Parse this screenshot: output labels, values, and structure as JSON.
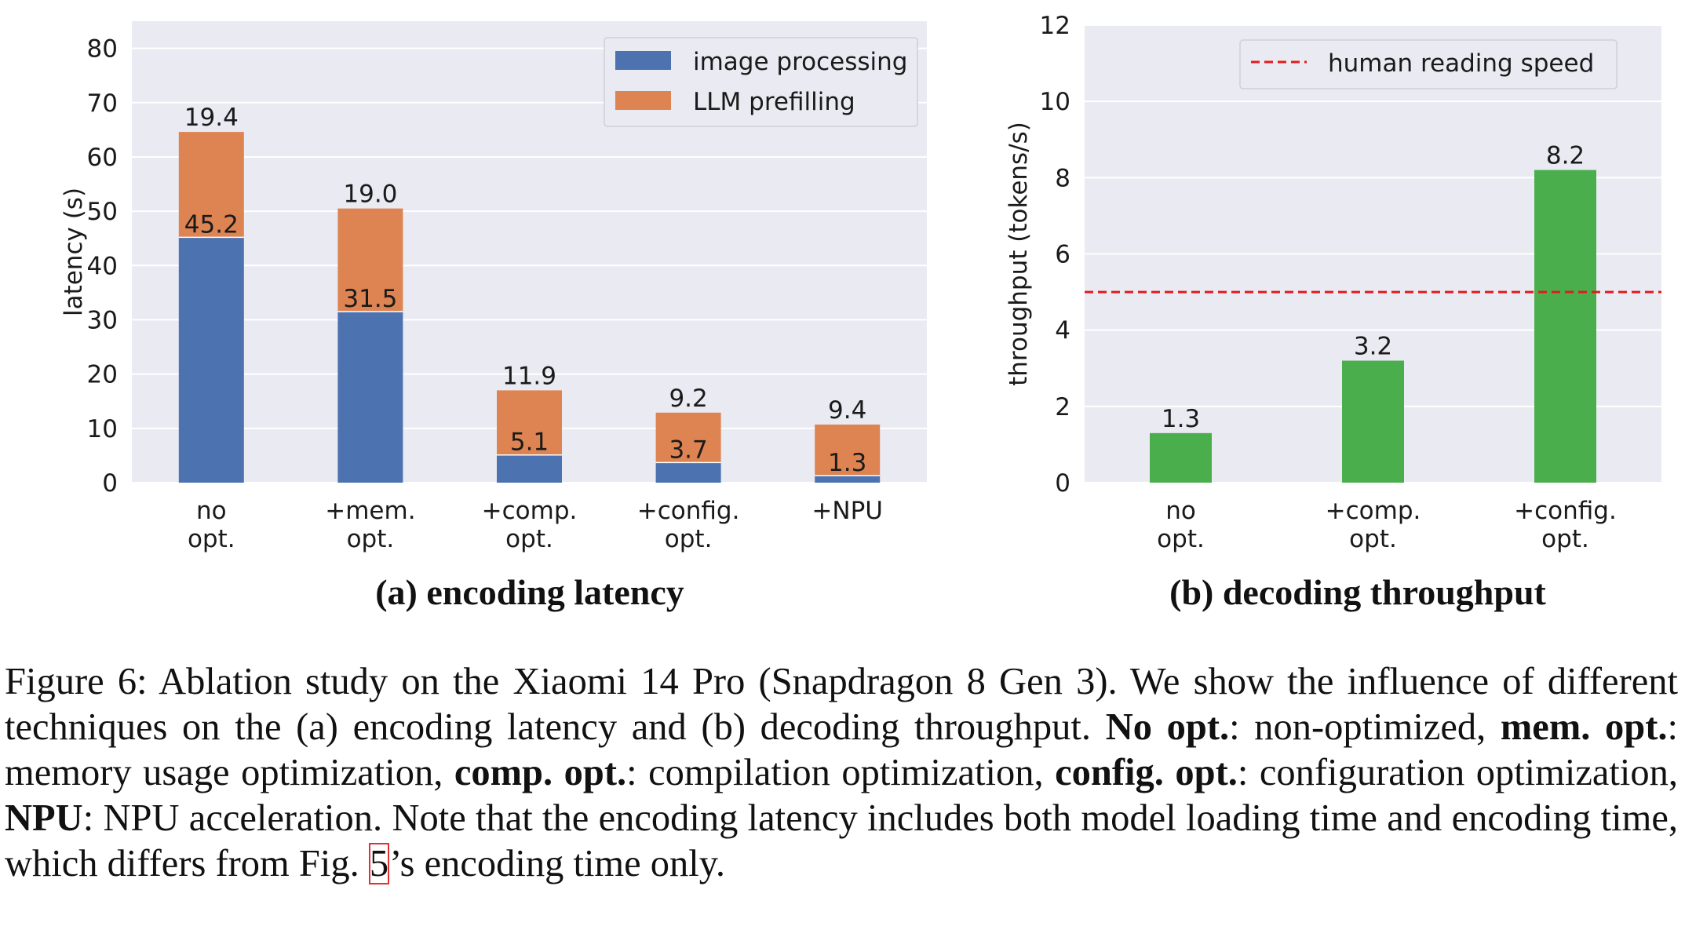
{
  "colors": {
    "image_processing": "#4c72b0",
    "llm_prefilling": "#dd8452",
    "throughput": "#4bae4c",
    "human_line": "#e41a1c",
    "plot_bg": "#eaeaf2",
    "grid": "#ffffff",
    "caption_link_box": "#e03030"
  },
  "chart_data": [
    {
      "type": "bar",
      "stacked": true,
      "categories": [
        [
          "no",
          "opt."
        ],
        [
          "+mem.",
          "opt."
        ],
        [
          "+comp.",
          "opt."
        ],
        [
          "+config.",
          "opt."
        ],
        [
          "+NPU"
        ]
      ],
      "series": [
        {
          "name": "image processing",
          "values": [
            45.2,
            31.5,
            5.1,
            3.7,
            1.3
          ]
        },
        {
          "name": "LLM prefilling",
          "values": [
            19.4,
            19.0,
            11.9,
            9.2,
            9.4
          ]
        }
      ],
      "ylabel": "latency (s)",
      "xlabel": "",
      "ylim": [
        0,
        85
      ],
      "yticks": [
        0,
        10,
        20,
        30,
        40,
        50,
        60,
        70,
        80
      ],
      "legend_position": "top-right",
      "grid": true
    },
    {
      "type": "bar",
      "categories": [
        [
          "no",
          "opt."
        ],
        [
          "+comp.",
          "opt."
        ],
        [
          "+config.",
          "opt."
        ]
      ],
      "series": [
        {
          "name": "",
          "values": [
            1.3,
            3.2,
            8.2
          ]
        }
      ],
      "reference_lines": [
        {
          "name": "human reading speed",
          "y": 5,
          "style": "dashed"
        }
      ],
      "ylabel": "throughput (tokens/s)",
      "xlabel": "",
      "ylim": [
        0,
        12
      ],
      "yticks": [
        0,
        2,
        4,
        6,
        8,
        10,
        12
      ],
      "legend_position": "top-right",
      "grid": true
    }
  ],
  "subcaptions": {
    "a": "(a) encoding latency",
    "b": "(b) decoding throughput"
  },
  "caption": {
    "intro": "Figure 6: Ablation study on the Xiaomi 14 Pro (Snapdragon 8 Gen 3). We show the influence of different techniques on the (a) encoding latency and (b) decoding throughput. ",
    "t1_bold": "No opt.",
    "t1_rest": ": non-optimized, ",
    "t2_bold": "mem. opt.",
    "t2_rest": ": memory usage optimization, ",
    "t3_bold": "comp. opt.",
    "t3_rest": ": compilation optimization, ",
    "t4_bold": "config. opt.",
    "t4_rest": ": configuration optimization, ",
    "t5_bold": "NPU",
    "t5_rest": ": NPU acceleration. Note that the encoding latency includes both model loading time and encoding time, which differs from Fig. ",
    "fig_ref": "5",
    "tail": "’s encoding time only."
  }
}
